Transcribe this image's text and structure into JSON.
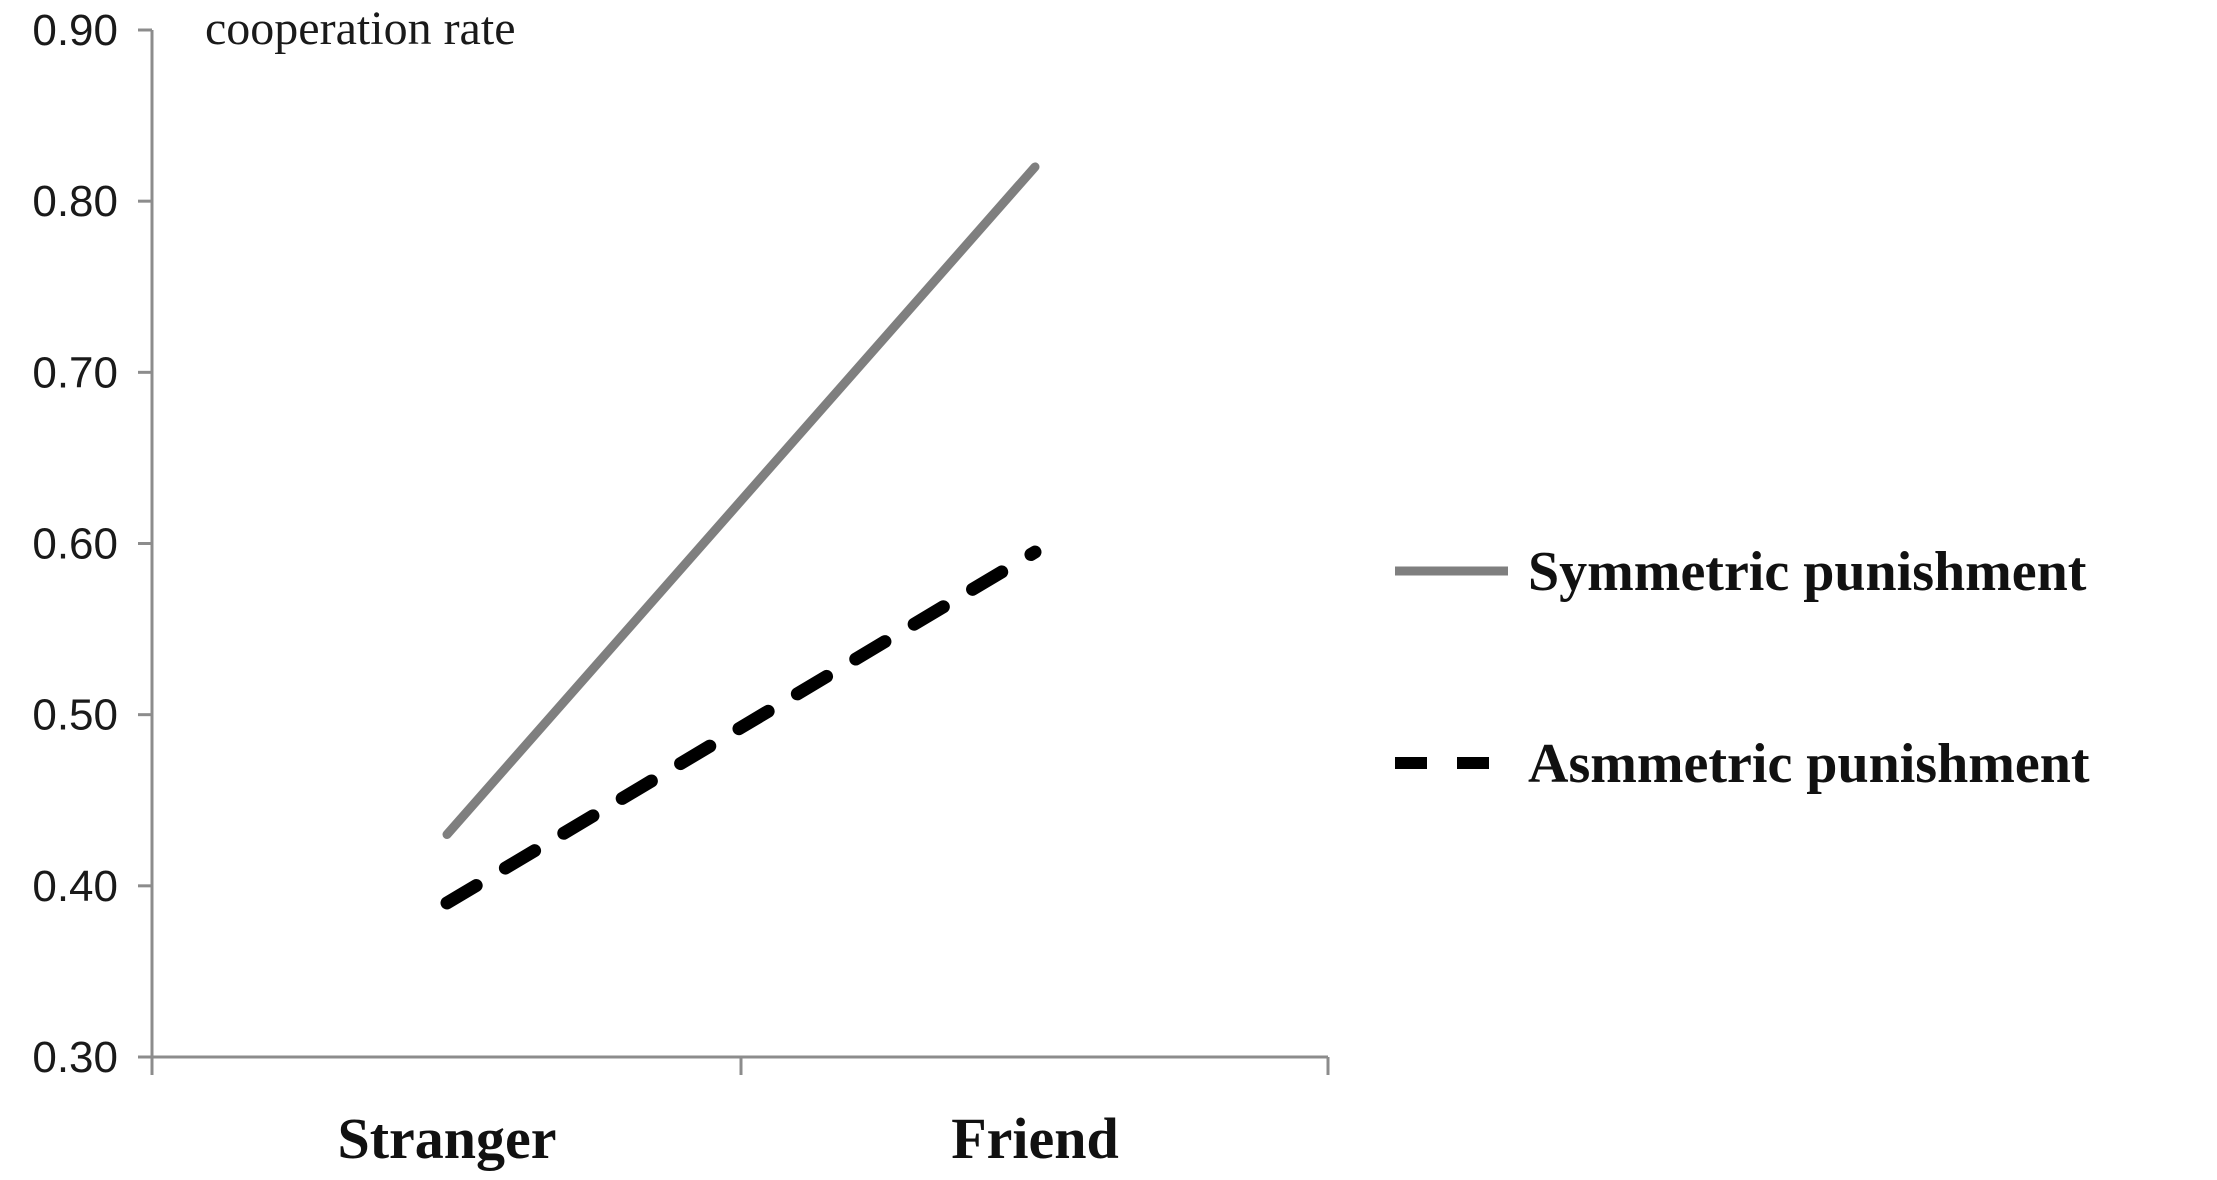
{
  "chart_data": {
    "type": "line",
    "title": "",
    "xlabel": "",
    "ylabel": "cooperation rate",
    "categories": [
      "Stranger",
      "Friend"
    ],
    "ylim": [
      0.3,
      0.9
    ],
    "yticks": [
      "0.30",
      "0.40",
      "0.50",
      "0.60",
      "0.70",
      "0.80",
      "0.90"
    ],
    "grid": false,
    "legend_position": "right",
    "series": [
      {
        "name": "Symmetric punishment",
        "values": [
          0.43,
          0.82
        ],
        "color": "#7f7f7f",
        "style": "solid"
      },
      {
        "name": "Asmmetric punishment",
        "values": [
          0.39,
          0.595
        ],
        "color": "#000000",
        "style": "dashed"
      }
    ]
  }
}
